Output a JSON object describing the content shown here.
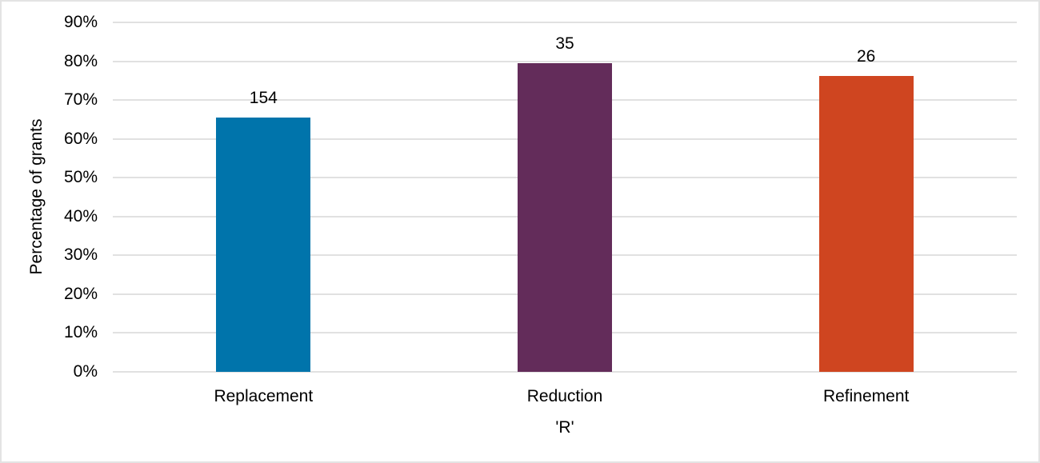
{
  "chart_data": {
    "type": "bar",
    "title": "",
    "xlabel": "'R'",
    "ylabel": "Percentage of grants",
    "ylim": [
      0,
      90
    ],
    "yticks": [
      "0%",
      "10%",
      "20%",
      "30%",
      "40%",
      "50%",
      "60%",
      "70%",
      "80%",
      "90%"
    ],
    "grid": true,
    "legend": null,
    "categories": [
      "Replacement",
      "Reduction",
      "Refinement"
    ],
    "values": [
      65.4,
      79.4,
      76.3
    ],
    "data_labels": [
      "154",
      "35",
      "26"
    ],
    "colors": [
      "#0074ab",
      "#632c5a",
      "#cf4520"
    ]
  },
  "axis": {
    "y_title": "Percentage of grants",
    "x_title": "'R'",
    "ticks": [
      "0%",
      "10%",
      "20%",
      "30%",
      "40%",
      "50%",
      "60%",
      "70%",
      "80%",
      "90%"
    ]
  },
  "bars": [
    {
      "category": "Replacement",
      "label": "154",
      "color": "#0074ab"
    },
    {
      "category": "Reduction",
      "label": "35",
      "color": "#632c5a"
    },
    {
      "category": "Refinement",
      "label": "26",
      "color": "#cf4520"
    }
  ]
}
